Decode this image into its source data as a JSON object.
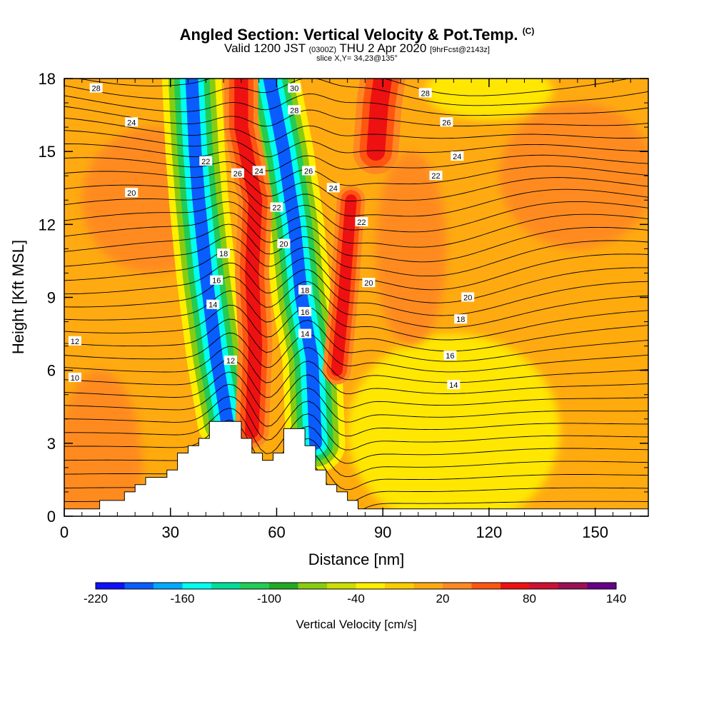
{
  "header": {
    "title": "Angled Section: Vertical Velocity & Pot.Temp.",
    "title_unit": "(C)",
    "valid_prefix": "Valid 1200 JST",
    "valid_utc": "(0300Z)",
    "valid_date": "THU 2 Apr 2020",
    "forecast": "[9hrFcst@2143z]",
    "slice": "slice X,Y= 34,23@135°"
  },
  "chart_data": {
    "type": "heatmap",
    "xlabel": "Distance [nm]",
    "ylabel": "Height [Kft MSL]",
    "xlim": [
      0,
      165
    ],
    "ylim": [
      0,
      18
    ],
    "x_ticks": [
      0,
      30,
      60,
      90,
      120,
      150
    ],
    "y_ticks": [
      0,
      3,
      6,
      9,
      12,
      15,
      18
    ],
    "colorbar": {
      "label": "Vertical Velocity [cm/s]",
      "tick_labels": [
        "-220",
        "-160",
        "-100",
        "-40",
        "20",
        "80",
        "140"
      ],
      "tick_values": [
        -220,
        -160,
        -100,
        -40,
        20,
        80,
        140
      ],
      "colors": [
        "#1010ff",
        "#0a5cff",
        "#00a8ff",
        "#00ffee",
        "#00dd99",
        "#22cc55",
        "#22aa22",
        "#88cc11",
        "#ccdd00",
        "#ffee00",
        "#ffcc00",
        "#ffaa11",
        "#ff8822",
        "#ff5511",
        "#ee1111",
        "#cc1133",
        "#991155",
        "#660088"
      ]
    },
    "terrain": [
      [
        0,
        0.3
      ],
      [
        10,
        0.3
      ],
      [
        10,
        0.65
      ],
      [
        17,
        0.65
      ],
      [
        17,
        1.0
      ],
      [
        20,
        1.0
      ],
      [
        20,
        1.3
      ],
      [
        23,
        1.3
      ],
      [
        23,
        1.6
      ],
      [
        29,
        1.6
      ],
      [
        29,
        1.9
      ],
      [
        32,
        1.9
      ],
      [
        32,
        2.6
      ],
      [
        35,
        2.6
      ],
      [
        35,
        2.9
      ],
      [
        38,
        2.9
      ],
      [
        38,
        3.2
      ],
      [
        41,
        3.2
      ],
      [
        41,
        3.9
      ],
      [
        50,
        3.9
      ],
      [
        50,
        3.2
      ],
      [
        53,
        3.2
      ],
      [
        53,
        2.6
      ],
      [
        56,
        2.6
      ],
      [
        56,
        2.3
      ],
      [
        59,
        2.3
      ],
      [
        59,
        2.6
      ],
      [
        62,
        2.6
      ],
      [
        62,
        3.6
      ],
      [
        68,
        3.6
      ],
      [
        68,
        2.9
      ],
      [
        71,
        2.9
      ],
      [
        71,
        1.9
      ],
      [
        74,
        1.9
      ],
      [
        74,
        1.3
      ],
      [
        77,
        1.3
      ],
      [
        77,
        1.0
      ],
      [
        80,
        1.0
      ],
      [
        80,
        0.65
      ],
      [
        83,
        0.65
      ],
      [
        83,
        0.3
      ],
      [
        165,
        0.3
      ]
    ],
    "bands": [
      {
        "name": "downdraft-west",
        "w": -190,
        "points": [
          [
            46,
            3.9
          ],
          [
            43,
            6.5
          ],
          [
            40,
            10
          ],
          [
            38,
            13
          ],
          [
            37,
            15
          ],
          [
            36,
            18
          ]
        ],
        "width": 4
      },
      {
        "name": "downdraft-east",
        "w": -200,
        "points": [
          [
            71,
            3.0
          ],
          [
            70,
            6.5
          ],
          [
            67,
            9
          ],
          [
            65,
            12
          ],
          [
            62,
            15
          ],
          [
            58,
            18
          ]
        ],
        "width": 4
      },
      {
        "name": "updraft-west",
        "w": 75,
        "points": [
          [
            53,
            3.5
          ],
          [
            54,
            7
          ],
          [
            53,
            10
          ],
          [
            54,
            13
          ],
          [
            50,
            16
          ],
          [
            50,
            18
          ]
        ],
        "width": 3
      },
      {
        "name": "updraft-east",
        "w": 70,
        "points": [
          [
            77,
            6
          ],
          [
            79,
            9
          ],
          [
            80,
            11
          ],
          [
            81,
            13
          ]
        ],
        "width": 2.5
      },
      {
        "name": "updraft-top",
        "w": 70,
        "points": [
          [
            88,
            15
          ],
          [
            89,
            17
          ],
          [
            90,
            18
          ]
        ],
        "width": 4
      }
    ],
    "contours": [
      {
        "label": "10",
        "y": 5.5
      },
      {
        "label": "12",
        "y": 7.1
      },
      {
        "label": "14",
        "y": 8.7
      },
      {
        "label": "16",
        "y": 9.3
      },
      {
        "label": "18",
        "y": 10.3
      },
      {
        "label": "20",
        "y": 13.2
      },
      {
        "label": "22",
        "y": 14.6
      },
      {
        "label": "24",
        "y": 16.2
      },
      {
        "label": "26",
        "y": 17.6
      },
      {
        "label": "28",
        "y": 18
      },
      {
        "label": "30",
        "y": 18
      }
    ],
    "contour_labels": [
      {
        "label": "28",
        "x": 9,
        "y": 17.6
      },
      {
        "label": "24",
        "x": 19,
        "y": 16.2
      },
      {
        "label": "22",
        "x": 40,
        "y": 14.6
      },
      {
        "label": "26",
        "x": 49,
        "y": 14.1
      },
      {
        "label": "24",
        "x": 55,
        "y": 14.2
      },
      {
        "label": "30",
        "x": 65,
        "y": 17.6
      },
      {
        "label": "28",
        "x": 65,
        "y": 16.7
      },
      {
        "label": "26",
        "x": 69,
        "y": 14.2
      },
      {
        "label": "24",
        "x": 76,
        "y": 13.5
      },
      {
        "label": "20",
        "x": 19,
        "y": 13.3
      },
      {
        "label": "22",
        "x": 60,
        "y": 12.7
      },
      {
        "label": "20",
        "x": 62,
        "y": 11.2
      },
      {
        "label": "18",
        "x": 45,
        "y": 10.8
      },
      {
        "label": "16",
        "x": 43,
        "y": 9.7
      },
      {
        "label": "14",
        "x": 42,
        "y": 8.7
      },
      {
        "label": "18",
        "x": 68,
        "y": 9.3
      },
      {
        "label": "16",
        "x": 68,
        "y": 8.4
      },
      {
        "label": "14",
        "x": 68,
        "y": 7.5
      },
      {
        "label": "12",
        "x": 47,
        "y": 6.4
      },
      {
        "label": "12",
        "x": 3,
        "y": 7.2
      },
      {
        "label": "10",
        "x": 3,
        "y": 5.7
      },
      {
        "label": "22",
        "x": 84,
        "y": 12.1
      },
      {
        "label": "20",
        "x": 86,
        "y": 9.6
      },
      {
        "label": "20",
        "x": 114,
        "y": 9.0
      },
      {
        "label": "18",
        "x": 112,
        "y": 8.1
      },
      {
        "label": "16",
        "x": 109,
        "y": 6.6
      },
      {
        "label": "14",
        "x": 110,
        "y": 5.4
      },
      {
        "label": "22",
        "x": 105,
        "y": 14.0
      },
      {
        "label": "24",
        "x": 111,
        "y": 14.8
      },
      {
        "label": "26",
        "x": 108,
        "y": 16.2
      },
      {
        "label": "28",
        "x": 102,
        "y": 17.4
      }
    ]
  }
}
